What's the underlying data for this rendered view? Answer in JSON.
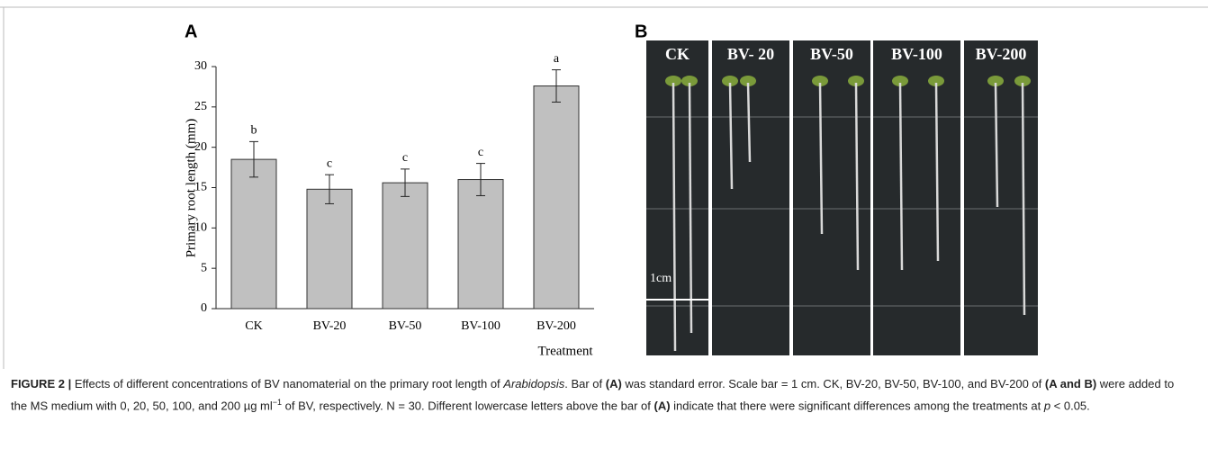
{
  "chart_data": {
    "type": "bar",
    "panel_label": "A",
    "y_label": "Primary root length (mm)",
    "x_label": "Treatment",
    "categories": [
      "CK",
      "BV-20",
      "BV-50",
      "BV-100",
      "BV-200"
    ],
    "values": [
      18.5,
      14.8,
      15.6,
      16.0,
      27.6
    ],
    "errors": [
      2.2,
      1.8,
      1.7,
      2.0,
      2.0
    ],
    "letters": [
      "b",
      "c",
      "c",
      "c",
      "a"
    ],
    "color": "#c0c0c0",
    "ylim": [
      0,
      30
    ],
    "yticks": [
      0,
      5,
      10,
      15,
      20,
      25,
      30
    ],
    "grid": false
  },
  "photo": {
    "panel_label": "B",
    "labels": [
      "CK",
      "BV- 20",
      "BV-50",
      "BV-100",
      "BV-200"
    ],
    "scale_label": "1cm"
  },
  "caption": {
    "segments": [
      {
        "text": "FIGURE 2 |",
        "style": "bold"
      },
      {
        "text": " Effects of different concentrations of BV nanomaterial on the primary root length of ",
        "style": "plain"
      },
      {
        "text": "Arabidopsis",
        "style": "italic"
      },
      {
        "text": ". Bar of ",
        "style": "plain"
      },
      {
        "text": "(A)",
        "style": "bold"
      },
      {
        "text": " was standard error. Scale bar = 1 cm. CK, BV-20, BV-50, BV-100, and BV-200 of ",
        "style": "plain"
      },
      {
        "text": "(A and B)",
        "style": "bold"
      },
      {
        "text": " were added to the MS medium with 0, 20, 50, 100, and 200 µg ml",
        "style": "plain"
      },
      {
        "text": "−1",
        "style": "sup"
      },
      {
        "text": " of BV, respectively. N = 30. Different lowercase letters above the bar of ",
        "style": "plain"
      },
      {
        "text": "(A)",
        "style": "bold"
      },
      {
        "text": " indicate that there were significant differences among the treatments at ",
        "style": "plain"
      },
      {
        "text": "p",
        "style": "italic"
      },
      {
        "text": " < 0.05.",
        "style": "plain"
      }
    ]
  }
}
